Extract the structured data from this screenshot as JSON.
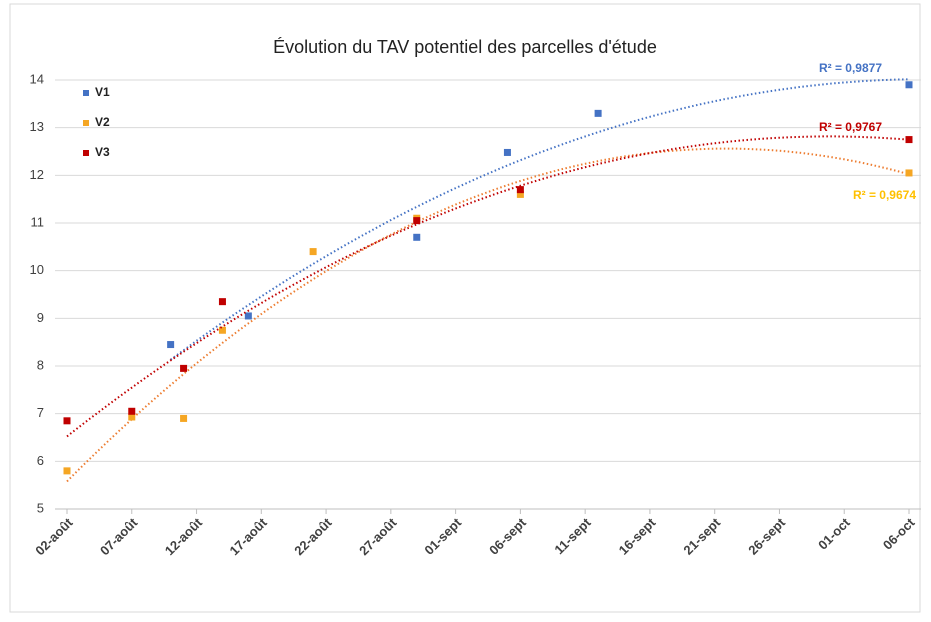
{
  "chart_data": {
    "type": "scatter",
    "title": "Évolution du TAV potentiel des parcelles d'étude",
    "series": [
      {
        "name": "V1",
        "color": "#4472c4",
        "trend_color": "#4472c4",
        "x": [
          8,
          14,
          27,
          34,
          41,
          65
        ],
        "values": [
          8.45,
          9.05,
          10.7,
          12.48,
          13.3,
          13.9
        ]
      },
      {
        "name": "V2",
        "color": "#f5a623",
        "trend_color": "#ed7d31",
        "x": [
          0,
          5,
          9,
          12,
          19,
          27,
          35,
          65
        ],
        "values": [
          5.8,
          6.93,
          6.9,
          8.75,
          10.4,
          11.1,
          11.6,
          12.05
        ]
      },
      {
        "name": "V3",
        "color": "#c00000",
        "trend_color": "#c00000",
        "x": [
          0,
          5,
          9,
          12,
          27,
          35,
          65
        ],
        "values": [
          6.85,
          7.05,
          7.95,
          9.35,
          11.05,
          11.7,
          12.75
        ]
      }
    ],
    "annotations": [
      {
        "text": "R² = 0,9877",
        "color": "#4472c4"
      },
      {
        "text": "R² = 0,9767",
        "color": "#c00000"
      },
      {
        "text": "R² = 0,9674",
        "color": "#ffc000"
      }
    ],
    "xlim": [
      0,
      65
    ],
    "xticks": [
      {
        "value": 0,
        "label": "02-août"
      },
      {
        "value": 5,
        "label": "07-août"
      },
      {
        "value": 10,
        "label": "12-août"
      },
      {
        "value": 15,
        "label": "17-août"
      },
      {
        "value": 20,
        "label": "22-août"
      },
      {
        "value": 25,
        "label": "27-août"
      },
      {
        "value": 30,
        "label": "01-sept"
      },
      {
        "value": 35,
        "label": "06-sept"
      },
      {
        "value": 40,
        "label": "11-sept"
      },
      {
        "value": 45,
        "label": "16-sept"
      },
      {
        "value": 50,
        "label": "21-sept"
      },
      {
        "value": 55,
        "label": "26-sept"
      },
      {
        "value": 60,
        "label": "01-oct"
      },
      {
        "value": 65,
        "label": "06-oct"
      }
    ],
    "ylim": [
      5,
      14
    ],
    "yticks": [
      5,
      6,
      7,
      8,
      9,
      10,
      11,
      12,
      13,
      14
    ],
    "grid": true,
    "legend": "top-left"
  }
}
